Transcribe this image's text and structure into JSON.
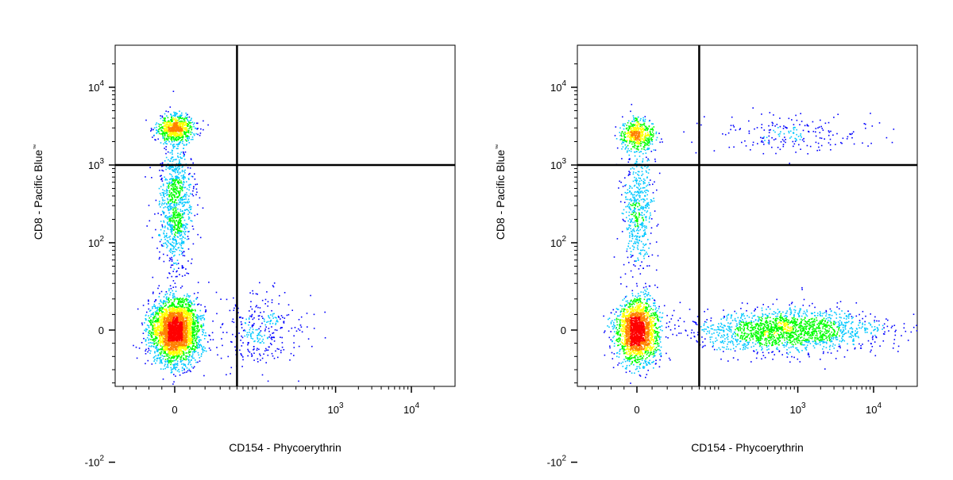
{
  "chart_data": [
    {
      "type": "scatter",
      "subtype": "flow-cytometry-density-dot-plot",
      "xlabel": "CD154 - Phycoerythrin",
      "ylabel": "CD8 - Pacific Blue",
      "ylabel_mark": "™",
      "x_scale": "biexponential",
      "y_scale": "biexponential",
      "xlim": [
        -100,
        20000
      ],
      "ylim": [
        -150,
        25000
      ],
      "x_ticks": [
        {
          "value": 0,
          "label": "0"
        },
        {
          "value": 1000,
          "label": "10",
          "exp": "3"
        },
        {
          "value": 10000,
          "label": "10",
          "exp": "4"
        }
      ],
      "y_ticks": [
        {
          "value": -100,
          "label": "-10",
          "exp": "2"
        },
        {
          "value": 0,
          "label": "0"
        },
        {
          "value": 100,
          "label": "10",
          "exp": "2"
        },
        {
          "value": 1000,
          "label": "10",
          "exp": "3"
        },
        {
          "value": 10000,
          "label": "10",
          "exp": "4"
        }
      ],
      "quadrant_gate": {
        "x": 50,
        "y": 1000
      },
      "density_colors": [
        "#0000ff",
        "#00c8ff",
        "#00ff00",
        "#ffff00",
        "#ff8000",
        "#ff0000"
      ],
      "populations": [
        {
          "name": "CD8- CD154-",
          "x": 0,
          "y": 0,
          "spread_x": 0.35,
          "spread_y": 0.45,
          "relative_count": 0.62
        },
        {
          "name": "CD8+ CD154-",
          "x": 0,
          "y": 3000,
          "spread_x": 0.25,
          "spread_y": 0.2,
          "relative_count": 0.14
        },
        {
          "name": "CD8 intermediate CD154-",
          "x": 0,
          "y": 300,
          "spread_x": 0.25,
          "spread_y": 0.9,
          "relative_count": 0.18
        },
        {
          "name": "scattered",
          "x": 100,
          "y": 0,
          "spread_x": 0.6,
          "spread_y": 0.5,
          "relative_count": 0.06
        }
      ]
    },
    {
      "type": "scatter",
      "subtype": "flow-cytometry-density-dot-plot",
      "xlabel": "CD154 - Phycoerythrin",
      "ylabel": "CD8 - Pacific Blue",
      "ylabel_mark": "™",
      "x_scale": "biexponential",
      "y_scale": "biexponential",
      "xlim": [
        -100,
        20000
      ],
      "ylim": [
        -150,
        25000
      ],
      "x_ticks": [
        {
          "value": 0,
          "label": "0"
        },
        {
          "value": 1000,
          "label": "10",
          "exp": "3"
        },
        {
          "value": 10000,
          "label": "10",
          "exp": "4"
        }
      ],
      "y_ticks": [
        {
          "value": -100,
          "label": "-10",
          "exp": "2"
        },
        {
          "value": 0,
          "label": "0"
        },
        {
          "value": 100,
          "label": "10",
          "exp": "2"
        },
        {
          "value": 1000,
          "label": "10",
          "exp": "3"
        },
        {
          "value": 10000,
          "label": "10",
          "exp": "4"
        }
      ],
      "quadrant_gate": {
        "x": 50,
        "y": 1000
      },
      "density_colors": [
        "#0000ff",
        "#00c8ff",
        "#00ff00",
        "#ffff00",
        "#ff8000",
        "#ff0000"
      ],
      "populations": [
        {
          "name": "CD8- CD154-",
          "x": 0,
          "y": 0,
          "spread_x": 0.3,
          "spread_y": 0.45,
          "relative_count": 0.42
        },
        {
          "name": "CD8+ CD154-",
          "x": 0,
          "y": 2500,
          "spread_x": 0.25,
          "spread_y": 0.22,
          "relative_count": 0.1
        },
        {
          "name": "CD8 intermediate CD154-",
          "x": 0,
          "y": 300,
          "spread_x": 0.22,
          "spread_y": 0.9,
          "relative_count": 0.1
        },
        {
          "name": "CD8- CD154+",
          "x": 700,
          "y": 0,
          "spread_x": 1.3,
          "spread_y": 0.3,
          "relative_count": 0.34
        },
        {
          "name": "CD8+ CD154+",
          "x": 700,
          "y": 2500,
          "spread_x": 1.2,
          "spread_y": 0.3,
          "relative_count": 0.04
        }
      ]
    }
  ]
}
